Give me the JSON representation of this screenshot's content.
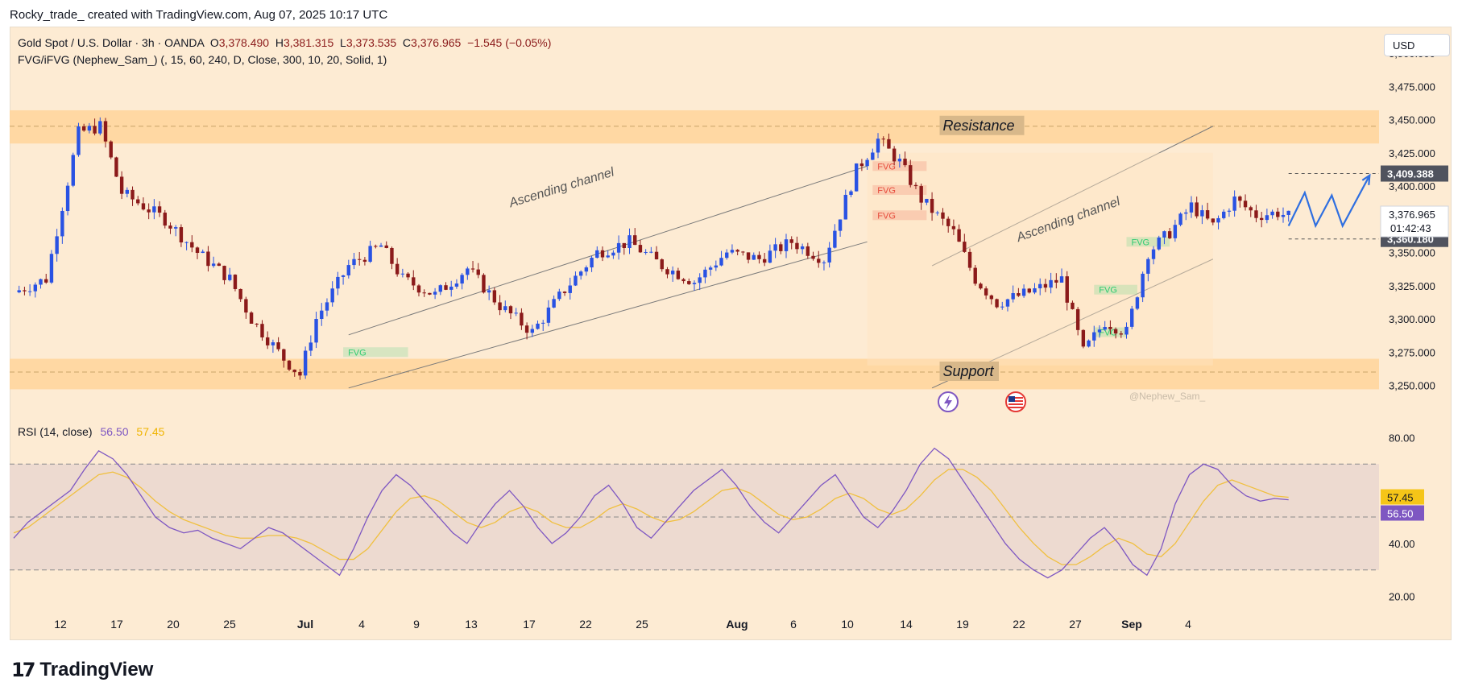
{
  "credit": "Rocky_trade_ created with TradingView.com, Aug 07, 2025 10:17 UTC",
  "legend": {
    "symbol": "Gold Spot / U.S. Dollar · 3h · OANDA",
    "o_label": "O",
    "o": "3,378.490",
    "h_label": "H",
    "h": "3,381.315",
    "l_label": "L",
    "l": "3,373.535",
    "c_label": "C",
    "c": "3,376.965",
    "change": "−1.545 (−0.05%)",
    "indicator": "FVG/iFVG (Nephew_Sam_) (, 15, 60, 240, D, Close, 300, 10, 20, Solid, 1)"
  },
  "currency": "USD",
  "watermark": "@Nephew_Sam_",
  "logo_text": "TradingView",
  "price_tags": {
    "high_line": "3,409.388",
    "current": "3,376.965",
    "countdown": "01:42:43",
    "low_line": "3,360.180"
  },
  "rsi": {
    "label": "RSI (14, close)",
    "value": "56.50",
    "ma_value": "57.45",
    "ticks": [
      "80.00",
      "40.00",
      "20.00"
    ],
    "tag_ma": "57.45",
    "tag_rsi": "56.50"
  },
  "colors": {
    "bull": "#2952e3",
    "bear": "#8b1a1a",
    "zone": "#ffd59a",
    "rsi_line": "#7e57c2",
    "rsi_ma": "#f0c040",
    "fvg_green": "#2ecc71",
    "fvg_red": "#e74c3c"
  },
  "chart_data": {
    "type": "candlestick",
    "instrument": "Gold Spot / U.S. Dollar",
    "interval": "3h",
    "y_ticks": [
      3500,
      3475,
      3450,
      3425,
      3400,
      3375,
      3350,
      3325,
      3300,
      3275,
      3250
    ],
    "y_tick_labels": [
      "3,500.000",
      "3,475.000",
      "3,450.000",
      "3,425.000",
      "3,400.000",
      "3,375.000",
      "3,350.000",
      "3,325.000",
      "3,300.000",
      "3,275.000",
      "3,250.000"
    ],
    "ylim": [
      3240,
      3520
    ],
    "x_tick_labels": [
      "12",
      "17",
      "20",
      "25",
      "Jul",
      "4",
      "9",
      "13",
      "17",
      "22",
      "25",
      "Aug",
      "6",
      "10",
      "14",
      "19",
      "22",
      "27",
      "Sep",
      "4"
    ],
    "zones": [
      {
        "label": "Resistance",
        "from": 3432,
        "to": 3457,
        "mid": 3445
      },
      {
        "label": "Support",
        "from": 3247,
        "to": 3270,
        "mid": 3260
      }
    ],
    "channel_labels": [
      "Ascending channel",
      "Ascending channel"
    ],
    "fvg_labels": [
      "FVG",
      "FVG",
      "FVG",
      "FVG",
      "FVG",
      "FVG",
      "FVG"
    ],
    "price_path": [
      [
        0,
        3320
      ],
      [
        6,
        3330
      ],
      [
        12,
        3440
      ],
      [
        16,
        3445
      ],
      [
        20,
        3395
      ],
      [
        28,
        3375
      ],
      [
        34,
        3350
      ],
      [
        40,
        3330
      ],
      [
        44,
        3300
      ],
      [
        50,
        3270
      ],
      [
        53,
        3258
      ],
      [
        56,
        3300
      ],
      [
        62,
        3340
      ],
      [
        68,
        3355
      ],
      [
        72,
        3330
      ],
      [
        78,
        3318
      ],
      [
        84,
        3338
      ],
      [
        90,
        3310
      ],
      [
        96,
        3290
      ],
      [
        102,
        3322
      ],
      [
        108,
        3350
      ],
      [
        114,
        3358
      ],
      [
        120,
        3340
      ],
      [
        126,
        3328
      ],
      [
        132,
        3350
      ],
      [
        138,
        3345
      ],
      [
        144,
        3358
      ],
      [
        150,
        3345
      ],
      [
        156,
        3412
      ],
      [
        160,
        3435
      ],
      [
        164,
        3418
      ],
      [
        168,
        3390
      ],
      [
        174,
        3365
      ],
      [
        178,
        3330
      ],
      [
        182,
        3312
      ],
      [
        188,
        3320
      ],
      [
        194,
        3330
      ],
      [
        198,
        3275
      ],
      [
        202,
        3298
      ],
      [
        206,
        3290
      ],
      [
        210,
        3350
      ],
      [
        214,
        3365
      ],
      [
        218,
        3385
      ],
      [
        222,
        3370
      ],
      [
        226,
        3390
      ],
      [
        230,
        3378
      ],
      [
        234,
        3380
      ],
      [
        236,
        3377
      ]
    ],
    "projection": [
      [
        236,
        3370
      ],
      [
        239,
        3395
      ],
      [
        241,
        3370
      ],
      [
        244,
        3393
      ],
      [
        246,
        3370
      ],
      [
        251,
        3408
      ]
    ],
    "rsi_ylim": [
      15,
      85
    ],
    "rsi_levels": [
      70,
      50,
      30
    ],
    "rsi_series": [
      42,
      48,
      52,
      56,
      60,
      68,
      75,
      72,
      66,
      58,
      50,
      46,
      44,
      45,
      42,
      40,
      38,
      42,
      46,
      44,
      40,
      36,
      32,
      28,
      38,
      50,
      60,
      66,
      62,
      56,
      50,
      44,
      40,
      48,
      55,
      60,
      54,
      46,
      40,
      44,
      50,
      58,
      62,
      55,
      46,
      42,
      48,
      54,
      60,
      64,
      68,
      62,
      54,
      48,
      44,
      50,
      56,
      62,
      66,
      58,
      50,
      46,
      52,
      60,
      70,
      76,
      72,
      64,
      56,
      48,
      40,
      34,
      30,
      27,
      30,
      36,
      42,
      46,
      40,
      32,
      28,
      38,
      55,
      66,
      70,
      68,
      62,
      58,
      56,
      57,
      56.5
    ],
    "rsi_ma_series": [
      44,
      46,
      50,
      54,
      58,
      62,
      66,
      67,
      65,
      61,
      56,
      52,
      49,
      47,
      45,
      43,
      42,
      42,
      43,
      43,
      42,
      40,
      37,
      34,
      34,
      38,
      45,
      52,
      57,
      58,
      56,
      52,
      48,
      46,
      48,
      52,
      54,
      52,
      48,
      46,
      46,
      49,
      53,
      55,
      53,
      50,
      48,
      49,
      52,
      56,
      60,
      61,
      59,
      55,
      51,
      49,
      50,
      53,
      57,
      59,
      57,
      53,
      51,
      53,
      58,
      64,
      68,
      68,
      65,
      60,
      53,
      46,
      40,
      35,
      32,
      32,
      35,
      39,
      42,
      40,
      36,
      35,
      40,
      48,
      56,
      62,
      64,
      62,
      60,
      58,
      57.45
    ]
  }
}
